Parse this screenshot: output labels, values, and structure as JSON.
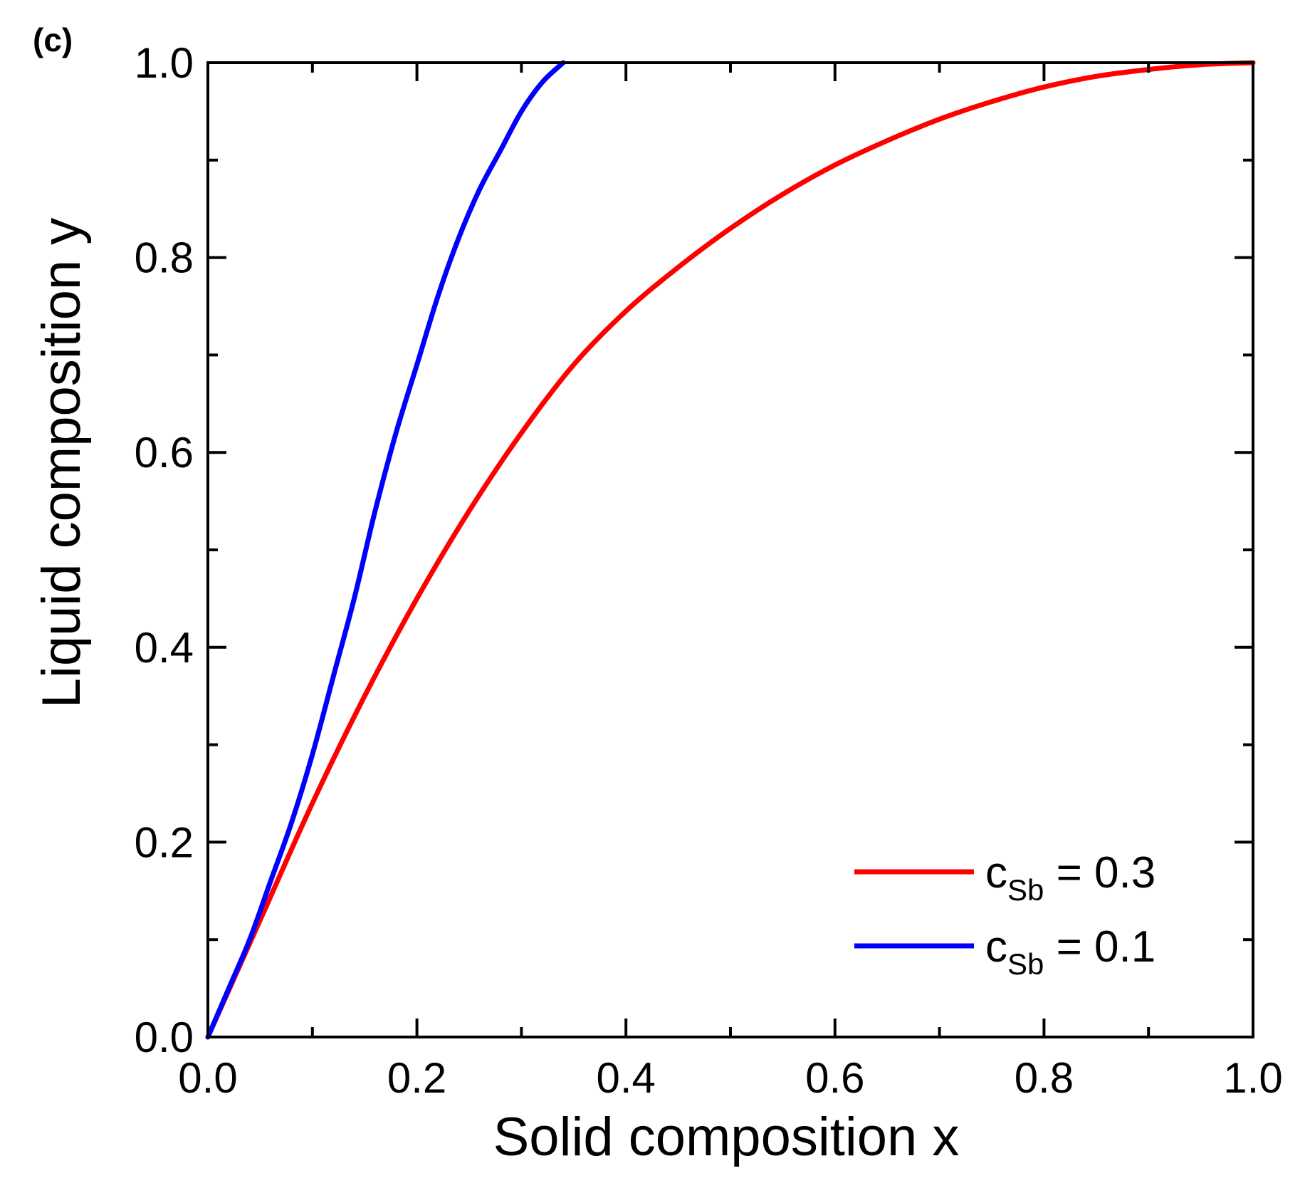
{
  "panel_label": "(c)",
  "chart_data": {
    "type": "line",
    "xlabel": "Solid composition x",
    "ylabel": "Liquid composition y",
    "xlim": [
      0.0,
      1.0
    ],
    "ylim": [
      0.0,
      1.0
    ],
    "xticks": [
      "0.0",
      "0.2",
      "0.4",
      "0.6",
      "0.8",
      "1.0"
    ],
    "yticks": [
      "0.0",
      "0.2",
      "0.4",
      "0.6",
      "0.8",
      "1.0"
    ],
    "grid": false,
    "legend_position": "bottom-right",
    "series": [
      {
        "name": "c_Sb = 0.3",
        "legend_main": "c",
        "legend_sub": "Sb",
        "legend_value": " = 0.3",
        "color": "#ff0000",
        "x": [
          0.0,
          0.05,
          0.1,
          0.15,
          0.2,
          0.25,
          0.3,
          0.35,
          0.4,
          0.45,
          0.5,
          0.55,
          0.6,
          0.65,
          0.7,
          0.75,
          0.8,
          0.85,
          0.9,
          0.95,
          1.0
        ],
        "y": [
          0.0,
          0.12,
          0.24,
          0.35,
          0.45,
          0.54,
          0.62,
          0.69,
          0.745,
          0.79,
          0.83,
          0.865,
          0.895,
          0.92,
          0.942,
          0.96,
          0.975,
          0.986,
          0.993,
          0.998,
          1.0
        ]
      },
      {
        "name": "c_Sb = 0.1",
        "legend_main": "c",
        "legend_sub": "Sb",
        "legend_value": " = 0.1",
        "color": "#0000ff",
        "x": [
          0.0,
          0.02,
          0.04,
          0.06,
          0.08,
          0.1,
          0.12,
          0.14,
          0.16,
          0.18,
          0.2,
          0.22,
          0.24,
          0.26,
          0.28,
          0.3,
          0.32,
          0.34
        ],
        "y": [
          0.0,
          0.05,
          0.1,
          0.16,
          0.22,
          0.29,
          0.37,
          0.45,
          0.54,
          0.62,
          0.69,
          0.76,
          0.82,
          0.87,
          0.91,
          0.95,
          0.98,
          1.0
        ]
      }
    ]
  }
}
